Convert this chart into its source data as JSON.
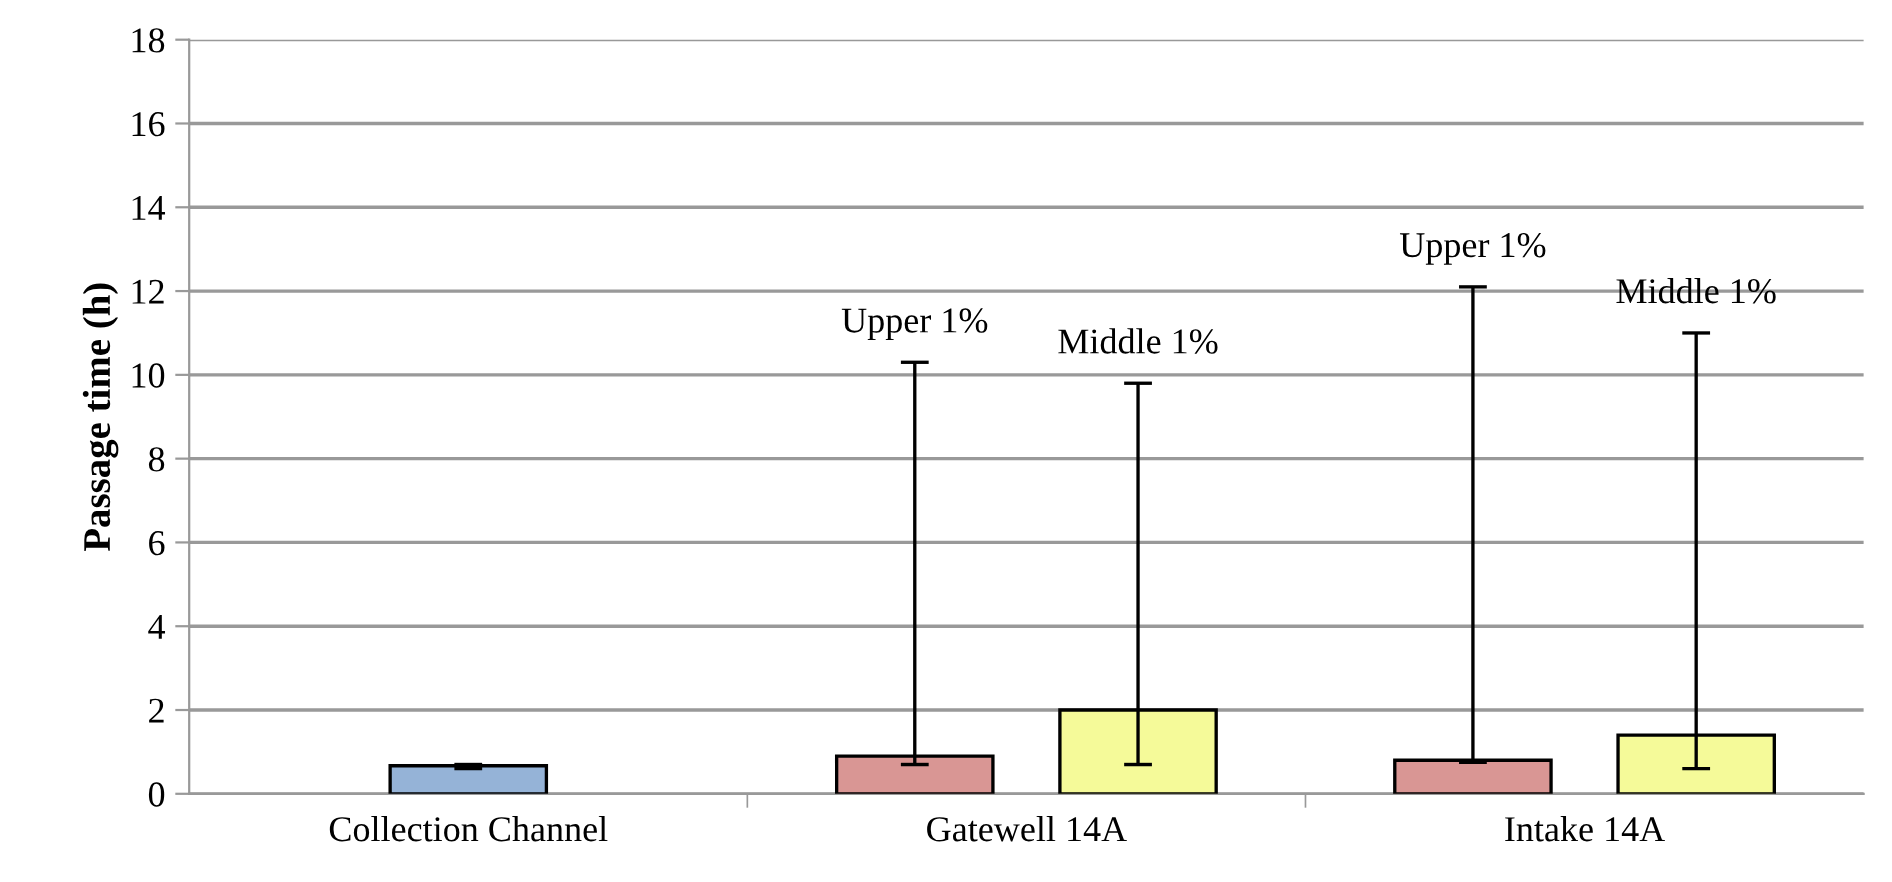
{
  "chart_data": {
    "type": "bar",
    "ylabel": "Passage time (h)",
    "categories": [
      "Collection Channel",
      "Gatewell 14A",
      "Intake 14A"
    ],
    "series": [
      {
        "color": "#95b3d7",
        "values": [
          0.67,
          null,
          null
        ],
        "errors": [
          [
            0.6,
            0.7
          ],
          null,
          null
        ]
      },
      {
        "color": "#d99694",
        "values": [
          null,
          0.9,
          0.8
        ],
        "errors": [
          null,
          [
            0.7,
            10.3
          ],
          [
            0.75,
            12.1
          ]
        ]
      },
      {
        "color": "#f5fa99",
        "values": [
          null,
          2.0,
          1.4
        ],
        "errors": [
          null,
          [
            0.7,
            9.8
          ],
          [
            0.6,
            11.0
          ]
        ]
      }
    ],
    "ylim": [
      0,
      18
    ],
    "yticks": [
      0,
      2,
      4,
      6,
      8,
      10,
      12,
      14,
      16,
      18
    ],
    "grid": "y",
    "legend": false,
    "annotations": [
      "Upper 1%",
      "Middle 1%",
      "Upper 1%",
      "Middle 1%"
    ]
  }
}
